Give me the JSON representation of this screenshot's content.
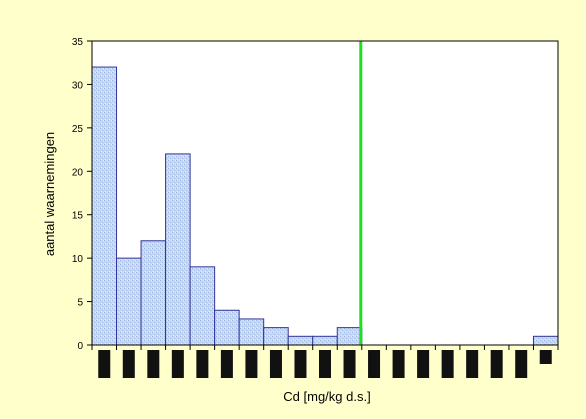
{
  "chart_data": {
    "type": "bar",
    "title": "",
    "xlabel": "Cd [mg/kg d.s.]",
    "ylabel": "aantal waarnemingen",
    "ylim": [
      0,
      35
    ],
    "yticks": [
      0,
      5,
      10,
      15,
      20,
      25,
      30,
      35
    ],
    "grid": false,
    "legend": "none",
    "categories": [
      "",
      "",
      "",
      "",
      "",
      "",
      "",
      "",
      "",
      "",
      "",
      "",
      "",
      "",
      "",
      "",
      "",
      "",
      ""
    ],
    "values": [
      32,
      10,
      12,
      22,
      9,
      4,
      3,
      2,
      1,
      1,
      2,
      0,
      0,
      0,
      0,
      0,
      0,
      0,
      1
    ],
    "threshold": {
      "category_index": 11,
      "color": "#22dd22"
    },
    "colors": {
      "background": "#ffffcc",
      "plot_area": "#ffffff",
      "bar_fill": "#c6d7f2",
      "bar_stroke": "#333399",
      "axis": "#000000",
      "tick_label_box": "#111111"
    }
  }
}
